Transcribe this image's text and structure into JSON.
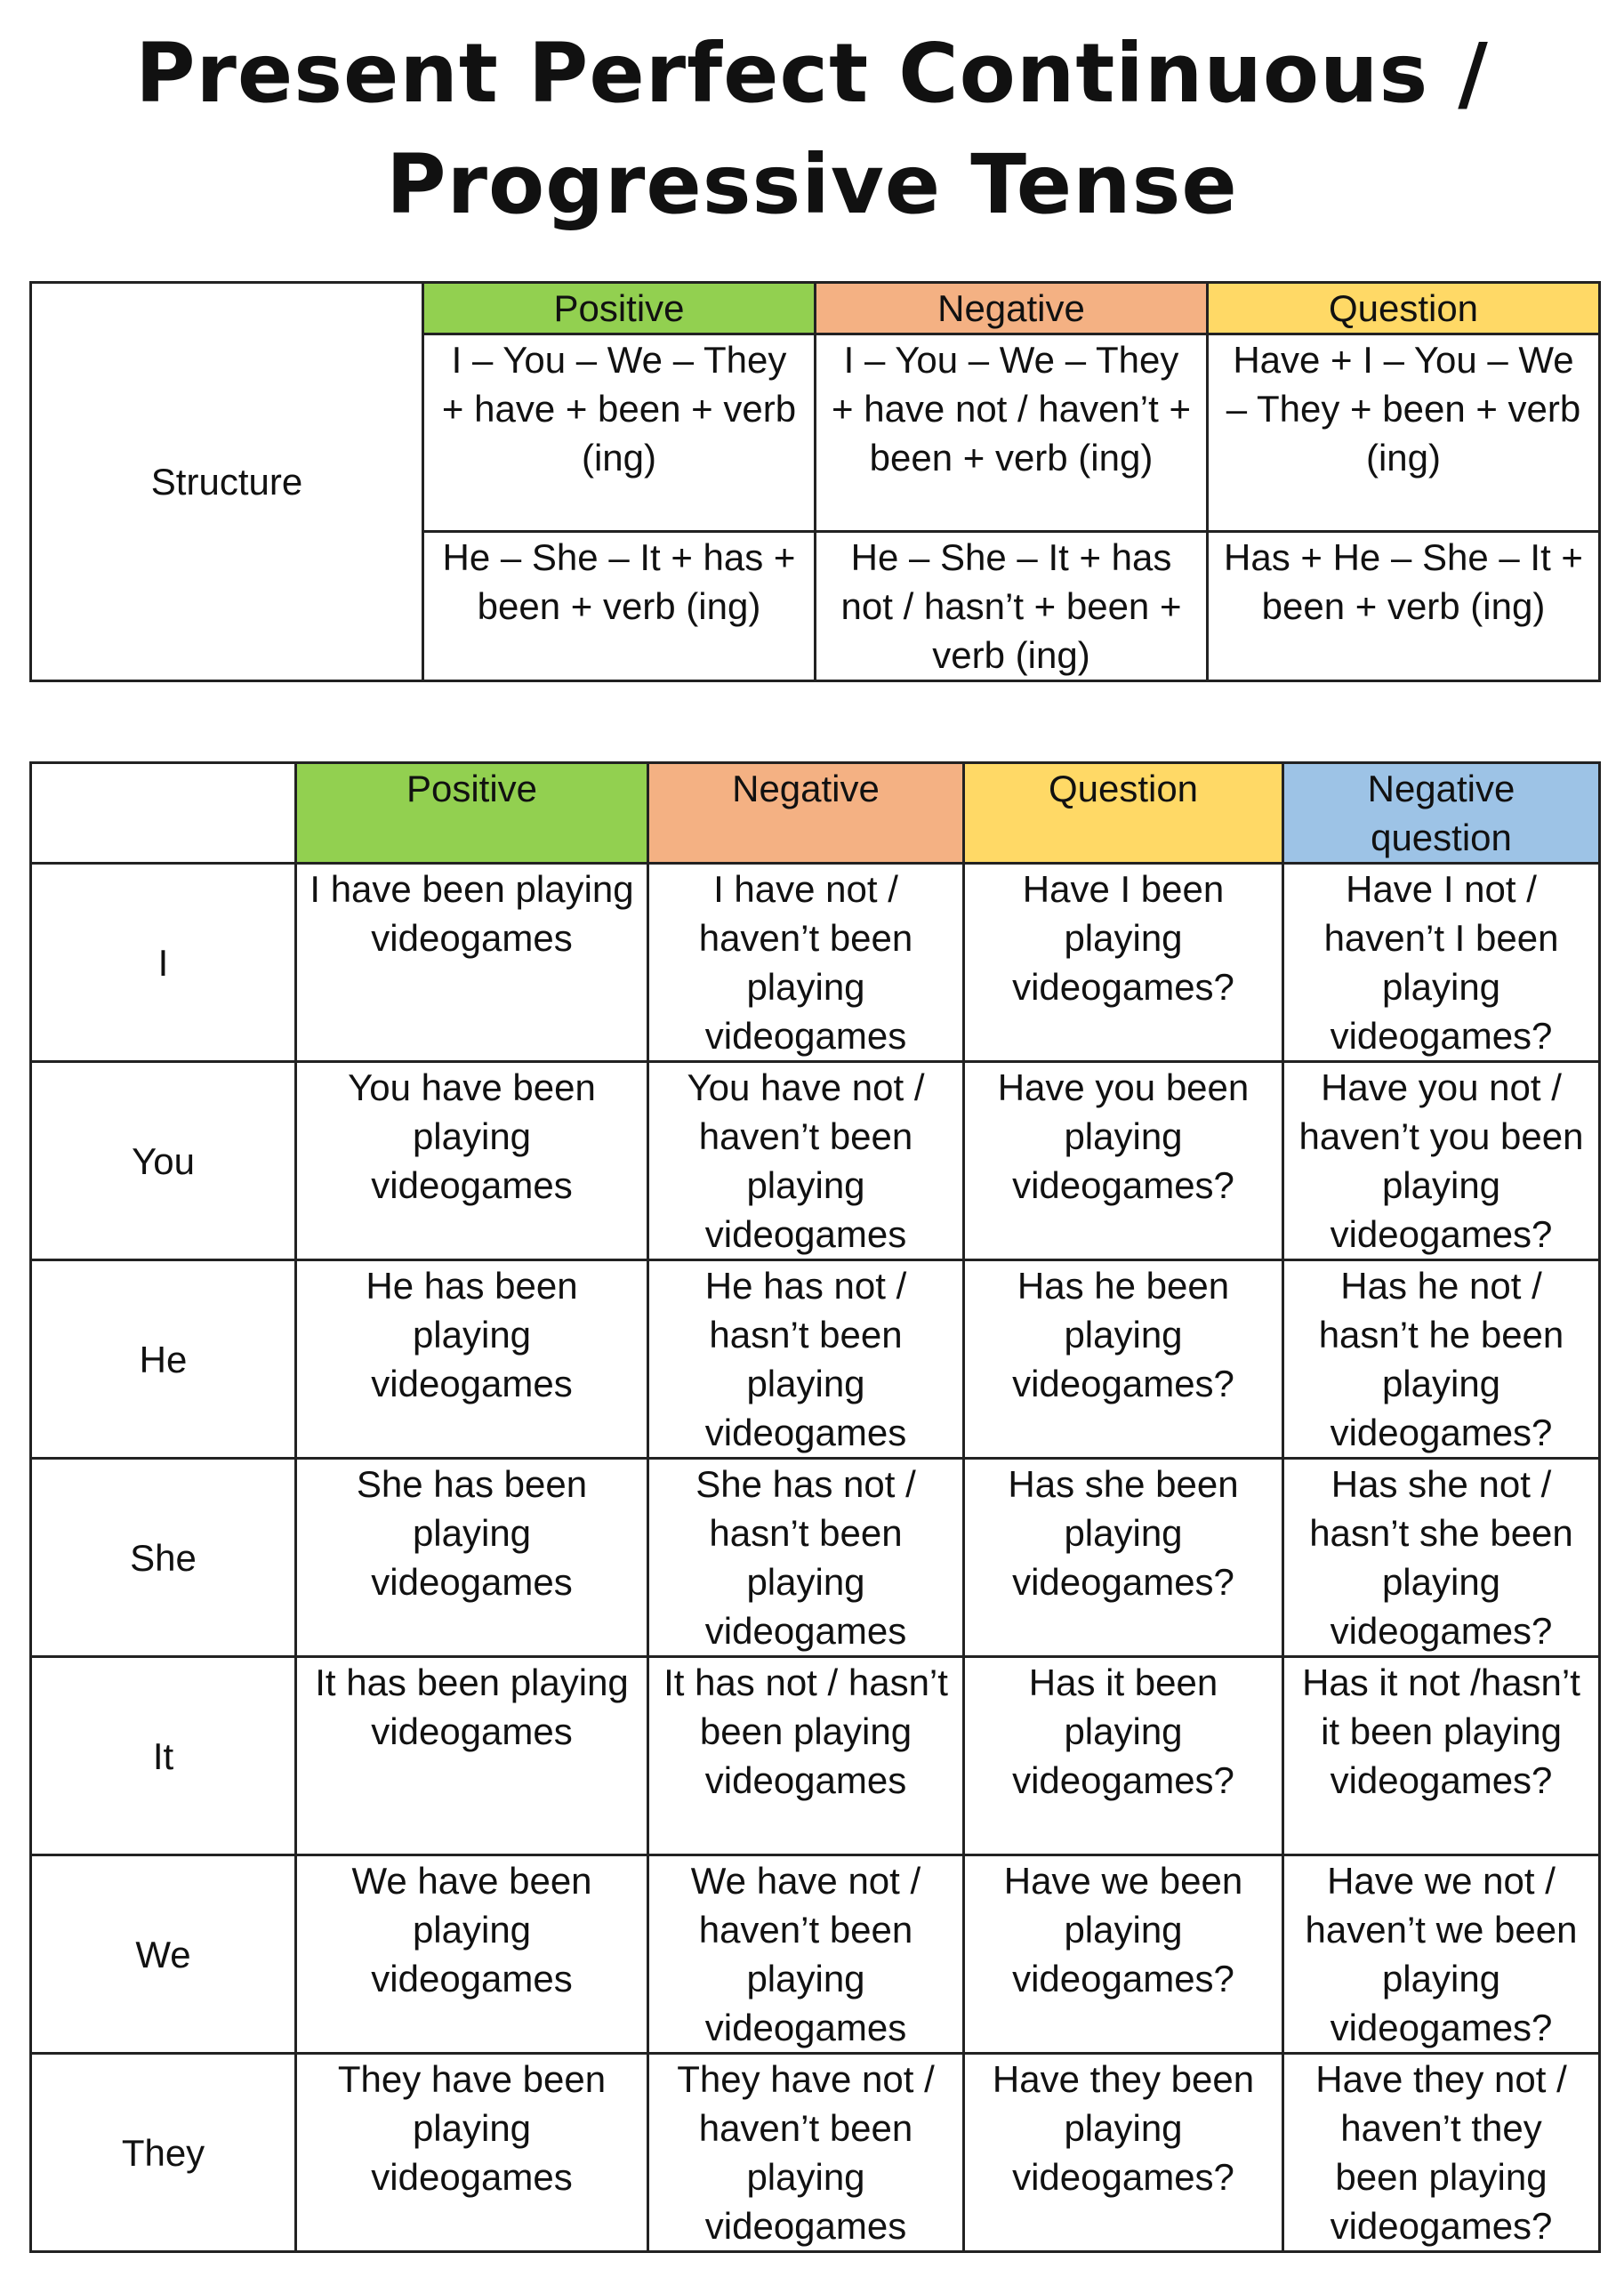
{
  "title": "Present Perfect Continuous / Progressive Tense",
  "colors": {
    "positive": "#92d050",
    "negative": "#f4b183",
    "question": "#ffd966",
    "negative_question": "#9dc3e6"
  },
  "structure_table": {
    "row_label": "Structure",
    "headers": [
      "Positive",
      "Negative",
      "Question"
    ],
    "rows": [
      [
        "I – You – We – They + have + been + verb (ing)",
        "I – You – We – They + have not / haven’t + been + verb (ing)",
        "Have + I – You – We – They + been + verb (ing)"
      ],
      [
        "He – She – It + has + been + verb (ing)",
        "He – She – It + has not / hasn’t + been + verb (ing)",
        "Has + He – She – It + been + verb (ing)"
      ]
    ]
  },
  "conjugation_table": {
    "headers": [
      "Positive",
      "Negative",
      "Question",
      "Negative question"
    ],
    "rows": [
      {
        "subject": "I",
        "cells": [
          "I have been playing videogames",
          "I have not / haven’t been playing videogames",
          "Have I been playing videogames?",
          "Have I not / haven’t I been playing videogames?"
        ]
      },
      {
        "subject": "You",
        "cells": [
          "You have been playing videogames",
          "You have not / haven’t been playing videogames",
          "Have you been playing videogames?",
          "Have you not / haven’t you been playing videogames?"
        ]
      },
      {
        "subject": "He",
        "cells": [
          "He has been playing videogames",
          "He has not / hasn’t been playing videogames",
          "Has he been playing videogames?",
          "Has he not / hasn’t he been playing videogames?"
        ]
      },
      {
        "subject": "She",
        "cells": [
          "She has been playing videogames",
          "She has not / hasn’t been playing videogames",
          "Has she been playing videogames?",
          "Has she not / hasn’t she been playing videogames?"
        ]
      },
      {
        "subject": "It",
        "cells": [
          "It has been playing videogames",
          "It has not / hasn’t been playing videogames",
          "Has it been playing videogames?",
          "Has it not /hasn’t it been playing videogames?"
        ]
      },
      {
        "subject": "We",
        "cells": [
          "We have been playing videogames",
          "We have not / haven’t been playing videogames",
          "Have we been playing videogames?",
          "Have we not / haven’t we been playing videogames?"
        ]
      },
      {
        "subject": "They",
        "cells": [
          "They have been playing videogames",
          "They have not / haven’t been playing videogames",
          "Have they been playing videogames?",
          "Have they not / haven’t they been playing videogames?"
        ]
      }
    ]
  }
}
